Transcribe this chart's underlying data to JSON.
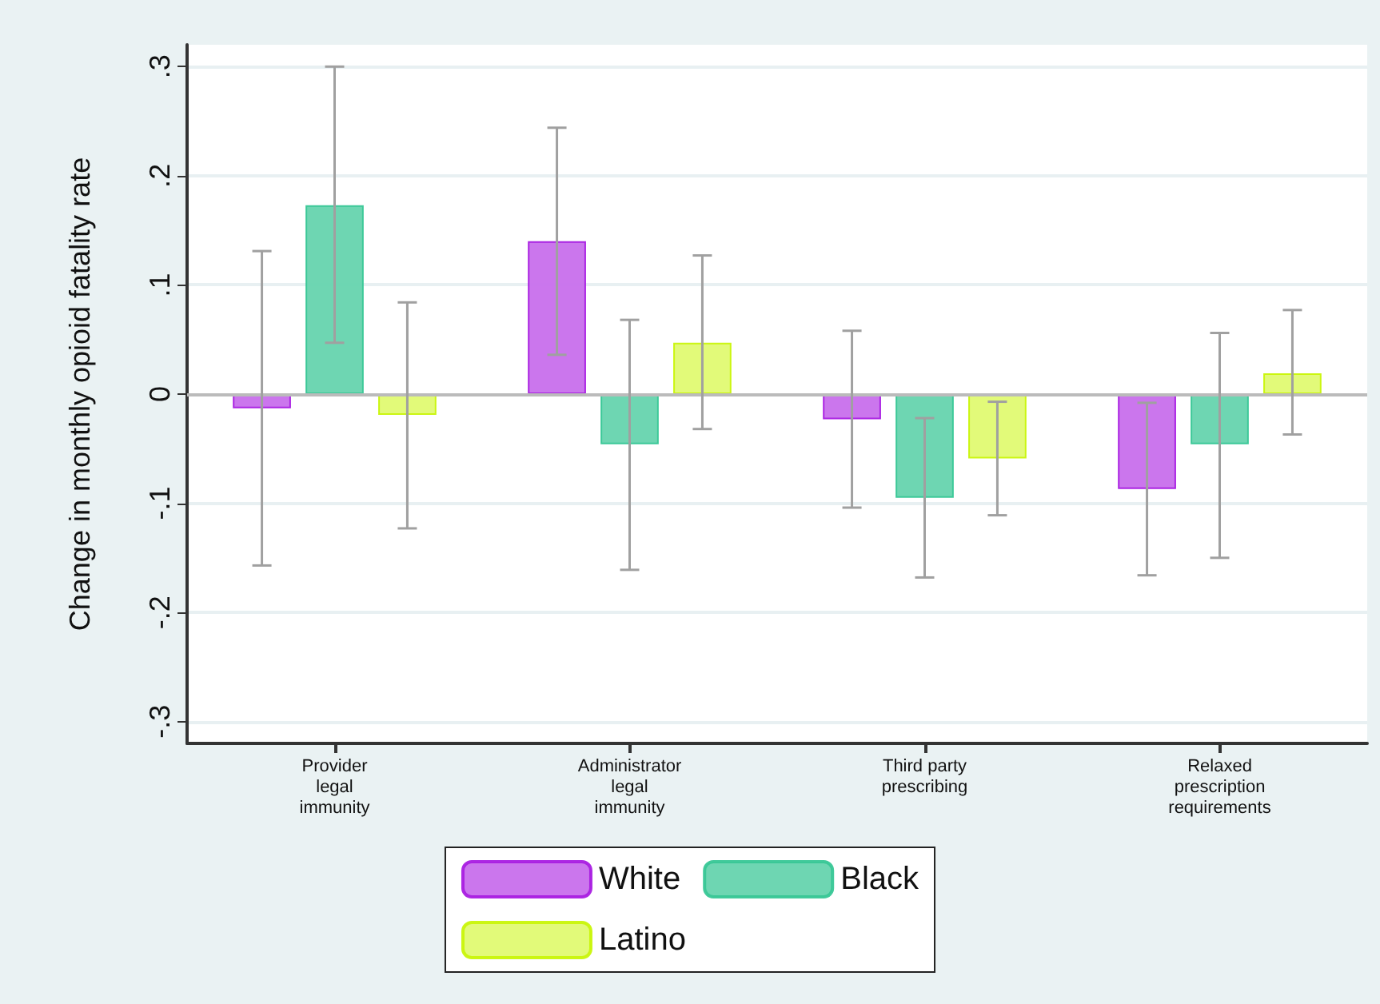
{
  "chart_data": {
    "type": "bar",
    "ylabel": "Change in monthly opioid fatality rate",
    "categories": [
      "Provider\nlegal\nimmunity",
      "Administrator\nlegal\nimmunity",
      "Third party\nprescribing",
      "Relaxed\nprescription\nrequirements"
    ],
    "series": [
      {
        "name": "White",
        "color": "#c86fec",
        "values": [
          -0.013,
          0.14,
          -0.023,
          -0.087
        ],
        "errors": [
          [
            -0.157,
            0.131
          ],
          [
            0.036,
            0.244
          ],
          [
            -0.104,
            0.058
          ],
          [
            -0.166,
            -0.008
          ]
        ]
      },
      {
        "name": "Black",
        "color": "#66d4ae",
        "values": [
          0.173,
          -0.046,
          -0.095,
          -0.046
        ],
        "errors": [
          [
            0.047,
            0.3
          ],
          [
            -0.161,
            0.068
          ],
          [
            -0.168,
            -0.022
          ],
          [
            -0.15,
            0.056
          ]
        ]
      },
      {
        "name": "Latino",
        "color": "#e0fa72",
        "values": [
          -0.019,
          0.047,
          -0.059,
          0.019
        ],
        "errors": [
          [
            -0.123,
            0.084
          ],
          [
            -0.032,
            0.127
          ],
          [
            -0.111,
            -0.007
          ],
          [
            -0.037,
            0.077
          ]
        ]
      }
    ],
    "ylim": [
      -0.32,
      0.32
    ],
    "yticks": [
      {
        "value": -0.3,
        "label": "-.3"
      },
      {
        "value": -0.2,
        "label": "-.2"
      },
      {
        "value": -0.1,
        "label": "-.1"
      },
      0,
      {
        "value": 0.1,
        "label": ".1"
      },
      {
        "value": 0.2,
        "label": ".2"
      },
      {
        "value": 0.3,
        "label": ".3"
      }
    ],
    "ref_lines": [
      {
        "axis": "y",
        "value": 0,
        "color": "#bbbbbb"
      }
    ],
    "grid": "y",
    "legend": "bottom"
  }
}
